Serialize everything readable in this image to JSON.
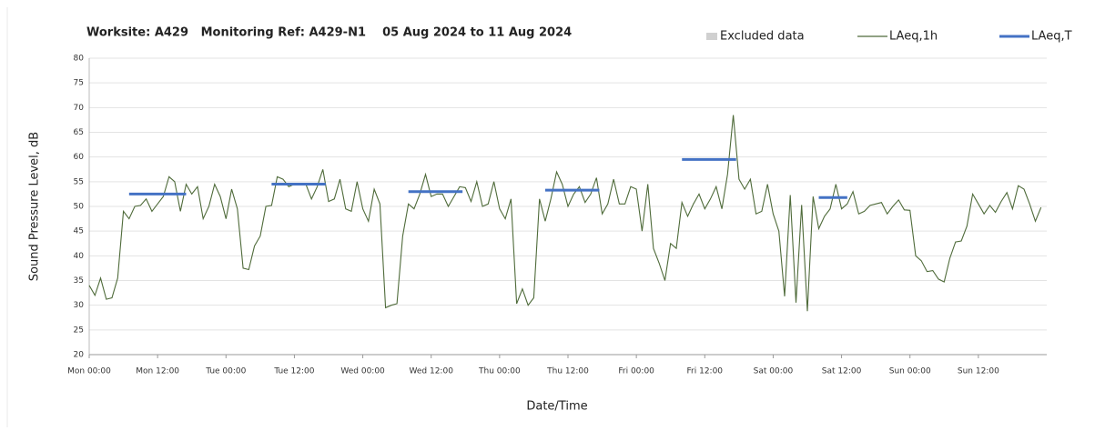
{
  "chart_data": {
    "type": "line",
    "title": "Worksite: A429   Monitoring Ref: A429-N1    05 Aug 2024 to 11 Aug 2024",
    "xlabel": "Date/Time",
    "ylabel": "Sound Pressure Level, dB",
    "xlim": [
      0,
      168
    ],
    "ylim": [
      20,
      80
    ],
    "yticks": [
      20,
      25,
      30,
      35,
      40,
      45,
      50,
      55,
      60,
      65,
      70,
      75,
      80
    ],
    "xticks": [
      {
        "value": 0,
        "label": "Mon 00:00"
      },
      {
        "value": 12,
        "label": "Mon 12:00"
      },
      {
        "value": 24,
        "label": "Tue 00:00"
      },
      {
        "value": 36,
        "label": "Tue 12:00"
      },
      {
        "value": 48,
        "label": "Wed 00:00"
      },
      {
        "value": 60,
        "label": "Wed 12:00"
      },
      {
        "value": 72,
        "label": "Thu 00:00"
      },
      {
        "value": 84,
        "label": "Thu 12:00"
      },
      {
        "value": 96,
        "label": "Fri 00:00"
      },
      {
        "value": 108,
        "label": "Fri 12:00"
      },
      {
        "value": 120,
        "label": "Sat 00:00"
      },
      {
        "value": 132,
        "label": "Sat 12:00"
      },
      {
        "value": 144,
        "label": "Sun 00:00"
      },
      {
        "value": 156,
        "label": "Sun 12:00"
      }
    ],
    "grid": true,
    "excluded": {
      "name": "Excluded data",
      "color": "#d0d0d0"
    },
    "series": [
      {
        "name": "LAeq,1h",
        "color": "#4f6b3a",
        "x": [
          0,
          1,
          2,
          3,
          4,
          5,
          6,
          7,
          8,
          9,
          10,
          11,
          12,
          13,
          14,
          15,
          16,
          17,
          18,
          19,
          20,
          21,
          22,
          23,
          24,
          25,
          26,
          27,
          28,
          29,
          30,
          31,
          32,
          33,
          34,
          35,
          36,
          37,
          38,
          39,
          40,
          41,
          42,
          43,
          44,
          45,
          46,
          47,
          48,
          49,
          50,
          51,
          52,
          53,
          54,
          55,
          56,
          57,
          58,
          59,
          60,
          61,
          62,
          63,
          64,
          65,
          66,
          67,
          68,
          69,
          70,
          71,
          72,
          73,
          74,
          75,
          76,
          77,
          78,
          79,
          80,
          81,
          82,
          83,
          84,
          85,
          86,
          87,
          88,
          89,
          90,
          91,
          92,
          93,
          94,
          95,
          96,
          97,
          98,
          99,
          100,
          101,
          102,
          103,
          104,
          105,
          106,
          107,
          108,
          109,
          110,
          111,
          112,
          113,
          114,
          115,
          116,
          117,
          118,
          119,
          120,
          121,
          122,
          123,
          124,
          125,
          126,
          127,
          128,
          129,
          130,
          131,
          132,
          133,
          134,
          135,
          136,
          137,
          138,
          139,
          140,
          141,
          142,
          143,
          144,
          145,
          146,
          147,
          148,
          149,
          150,
          151,
          152,
          153,
          154,
          155,
          156,
          157,
          158,
          159,
          160,
          161,
          162,
          163,
          164,
          165,
          166,
          167
        ],
        "values": [
          34,
          32,
          35.5,
          31.2,
          31.5,
          35.5,
          49,
          47.5,
          50,
          50.2,
          51.5,
          49,
          50.5,
          52,
          56,
          55,
          49,
          54.5,
          52.5,
          54,
          47.5,
          50,
          54.5,
          52,
          47.5,
          53.5,
          49.5,
          37.5,
          37.2,
          42,
          44,
          50,
          50.2,
          56,
          55.5,
          54,
          54.5,
          54.5,
          54.5,
          51.5,
          54,
          57.5,
          51,
          51.5,
          55.5,
          49.5,
          49,
          55,
          49.5,
          47,
          53.5,
          50.5,
          29.5,
          30,
          30.3,
          44,
          50.5,
          49.5,
          52.5,
          56.5,
          52,
          52.5,
          52.5,
          50,
          52,
          54,
          53.8,
          51,
          55,
          50,
          50.5,
          55,
          49.5,
          47.5,
          51.5,
          30.3,
          33.3,
          30,
          31.5,
          51.5,
          47,
          51.5,
          57,
          54.5,
          50,
          52.5,
          54,
          50.8,
          52.5,
          55.8,
          48.5,
          50.5,
          55.5,
          50.5,
          50.5,
          54,
          53.5,
          45,
          54.5,
          41.5,
          38.5,
          35,
          42.5,
          41.5,
          50.8,
          48,
          50.5,
          52.5,
          49.5,
          51.5,
          54,
          49.5,
          56.5,
          68.5,
          55.5,
          53.5,
          55.5,
          48.5,
          49,
          54.5,
          48.5,
          45,
          31.8,
          52.3,
          30.5,
          50.3,
          28.8,
          52,
          45.5,
          48,
          49.5,
          54.5,
          49.5,
          50.5,
          53,
          48.5,
          49,
          50.2,
          50.5,
          50.8,
          48.5,
          50,
          51.3,
          49.3,
          49.2,
          40,
          39,
          36.8,
          37,
          35.3,
          34.7,
          39.5,
          42.8,
          43,
          46,
          52.5,
          50.5,
          48.5,
          50.2,
          48.8,
          51,
          52.8,
          49.5,
          54.2,
          53.5,
          50.5,
          47,
          49.8
        ]
      },
      {
        "name": "LAeq,T",
        "color": "#4472c4",
        "type": "period",
        "x_start": [
          7,
          32,
          56,
          80,
          104,
          128
        ],
        "x_end": [
          17,
          41.5,
          65.5,
          89.5,
          113.5,
          133
        ],
        "values": [
          52.5,
          54.5,
          53,
          53.3,
          59.5,
          51.8
        ]
      }
    ]
  }
}
